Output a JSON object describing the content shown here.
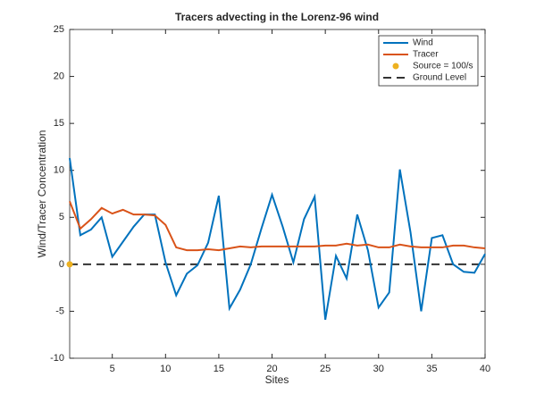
{
  "chart_data": {
    "type": "line",
    "title": "Tracers advecting in the Lorenz-96 wind",
    "x_label": "Sites",
    "y_label": "Wind/Tracer Concentration",
    "xlim": [
      1,
      40
    ],
    "xticks": [
      5,
      10,
      15,
      20,
      25,
      30,
      35,
      40
    ],
    "ylim": [
      -10,
      25
    ],
    "yticks": [
      -10,
      -5,
      0,
      5,
      10,
      15,
      20,
      25
    ],
    "legend": "upper right",
    "series": [
      {
        "name": "Wind",
        "color": "#0072bd",
        "style": "solid",
        "x": [
          1,
          2,
          3,
          4,
          5,
          6,
          7,
          8,
          9,
          10,
          11,
          12,
          13,
          14,
          15,
          16,
          17,
          18,
          19,
          20,
          21,
          22,
          23,
          24,
          25,
          26,
          27,
          28,
          29,
          30,
          31,
          32,
          33,
          34,
          35,
          36,
          37,
          38,
          39,
          40
        ],
        "values": [
          11.3,
          3.1,
          3.7,
          5.0,
          0.8,
          2.4,
          4.0,
          5.3,
          5.3,
          0.2,
          -3.3,
          -1.0,
          -0.1,
          2.3,
          7.3,
          -4.7,
          -2.7,
          0.0,
          3.8,
          7.4,
          4.0,
          0.2,
          4.8,
          7.2,
          -5.9,
          0.9,
          -1.5,
          5.3,
          1.5,
          -4.6,
          -3.0,
          10.1,
          3.4,
          -5.0,
          2.8,
          3.1,
          0.0,
          -0.8,
          -0.9,
          1.1
        ]
      },
      {
        "name": "Tracer",
        "color": "#d95319",
        "style": "solid",
        "x": [
          1,
          2,
          3,
          4,
          5,
          6,
          7,
          8,
          9,
          10,
          11,
          12,
          13,
          14,
          15,
          16,
          17,
          18,
          19,
          20,
          21,
          22,
          23,
          24,
          25,
          26,
          27,
          28,
          29,
          30,
          31,
          32,
          33,
          34,
          35,
          36,
          37,
          38,
          39,
          40
        ],
        "values": [
          6.7,
          3.8,
          4.8,
          6.0,
          5.4,
          5.8,
          5.3,
          5.3,
          5.2,
          4.2,
          1.8,
          1.5,
          1.5,
          1.6,
          1.5,
          1.7,
          1.9,
          1.8,
          1.9,
          1.9,
          1.9,
          1.9,
          1.9,
          1.9,
          2.0,
          2.0,
          2.2,
          2.0,
          2.1,
          1.8,
          1.8,
          2.1,
          1.9,
          1.8,
          1.8,
          1.8,
          2.0,
          2.0,
          1.8,
          1.7
        ]
      },
      {
        "name": "Source = 100/s",
        "color": "#edb120",
        "style": "marker",
        "x": [
          1
        ],
        "values": [
          0
        ]
      },
      {
        "name": "Ground Level",
        "color": "#333333",
        "style": "dashed",
        "x": [
          1,
          40
        ],
        "values": [
          0,
          0
        ]
      }
    ]
  }
}
